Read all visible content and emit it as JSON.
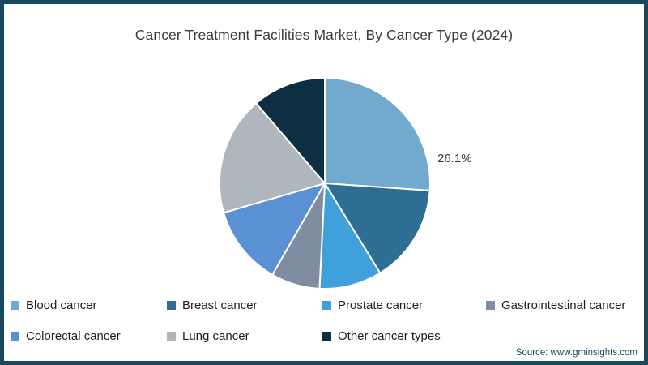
{
  "frame": {
    "border_color": "#174A5F",
    "background": "#FFFFFF"
  },
  "chart_data": {
    "type": "pie",
    "title": "Cancer Treatment Facilities Market, By Cancer Type (2024)",
    "legend_position": "bottom",
    "start_angle_deg": 0,
    "direction": "clockwise",
    "slices": [
      {
        "name": "Blood cancer",
        "value": 26.1,
        "color": "#72A9CE",
        "label": "26.1%"
      },
      {
        "name": "Breast cancer",
        "value": 15.1,
        "color": "#2E6E94"
      },
      {
        "name": "Prostate cancer",
        "value": 9.6,
        "color": "#3FA0DC"
      },
      {
        "name": "Gastrointestinal cancer",
        "value": 7.5,
        "color": "#7F8DA0"
      },
      {
        "name": "Colorectal cancer",
        "value": 12.2,
        "color": "#5A90D4"
      },
      {
        "name": "Lung cancer",
        "value": 18.2,
        "color": "#AFB6BE"
      },
      {
        "name": "Other cancer types",
        "value": 11.3,
        "color": "#0D2F41"
      }
    ]
  },
  "source": {
    "text": "Source: www.gminsights.com"
  }
}
